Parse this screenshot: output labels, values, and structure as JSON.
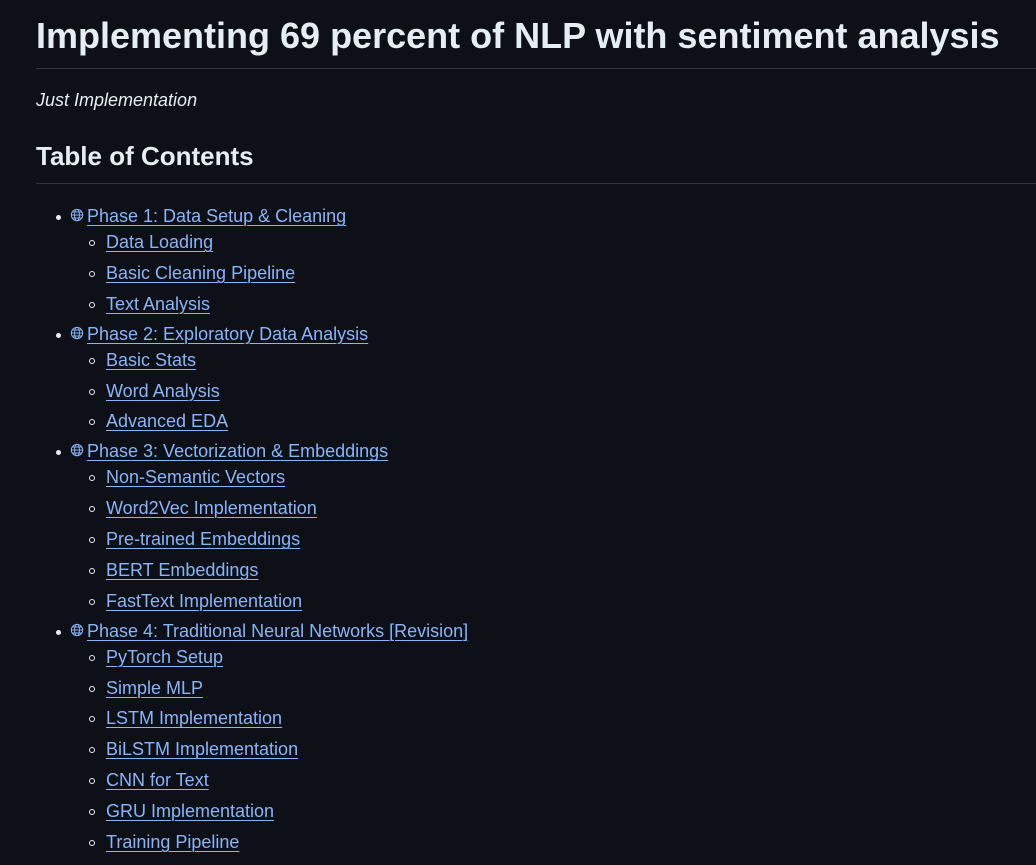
{
  "document": {
    "title": "Implementing 69 percent of NLP with sentiment analysis",
    "subtitle": "Just Implementation",
    "toc_heading": "Table of Contents"
  },
  "toc": [
    {
      "label": "Phase 1: Data Setup & Cleaning",
      "icon": "globe-icon",
      "items": [
        "Data Loading",
        "Basic Cleaning Pipeline",
        "Text Analysis"
      ]
    },
    {
      "label": "Phase 2: Exploratory Data Analysis",
      "icon": "globe-icon",
      "items": [
        "Basic Stats",
        "Word Analysis",
        "Advanced EDA"
      ]
    },
    {
      "label": "Phase 3: Vectorization & Embeddings",
      "icon": "globe-icon",
      "items": [
        "Non-Semantic Vectors",
        "Word2Vec Implementation",
        "Pre-trained Embeddings",
        "BERT Embeddings",
        "FastText Implementation"
      ]
    },
    {
      "label": "Phase 4: Traditional Neural Networks [Revision]",
      "icon": "globe-icon",
      "items": [
        "PyTorch Setup",
        "Simple MLP",
        "LSTM Implementation",
        "BiLSTM Implementation",
        "CNN for Text",
        "GRU Implementation",
        "Training Pipeline"
      ]
    }
  ],
  "colors": {
    "background": "#0d1117",
    "text": "#e6edf3",
    "link": "#8ab4f8",
    "divider": "#30363d"
  }
}
